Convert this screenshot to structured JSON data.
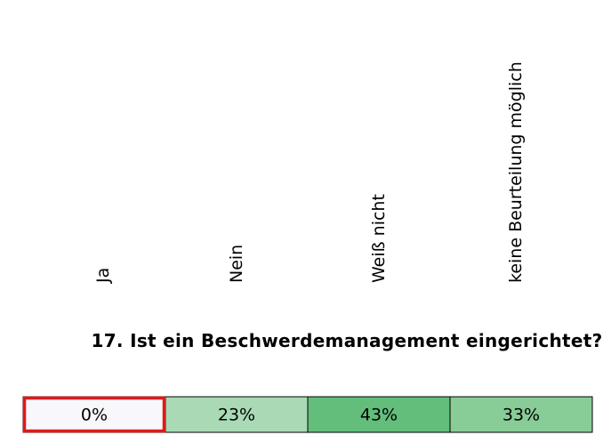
{
  "table": {
    "headers": [
      "Ja",
      "Nein",
      "Weiß nicht",
      "keine Beurteilung möglich"
    ],
    "question": "17. Ist ein Beschwerdemanagement eingerichtet?",
    "cells": [
      {
        "text": "0%",
        "color": "#f8f8fc"
      },
      {
        "text": "23%",
        "color": "#a9dab5"
      },
      {
        "text": "43%",
        "color": "#63be7b"
      },
      {
        "text": "33%",
        "color": "#88cc98"
      }
    ]
  }
}
